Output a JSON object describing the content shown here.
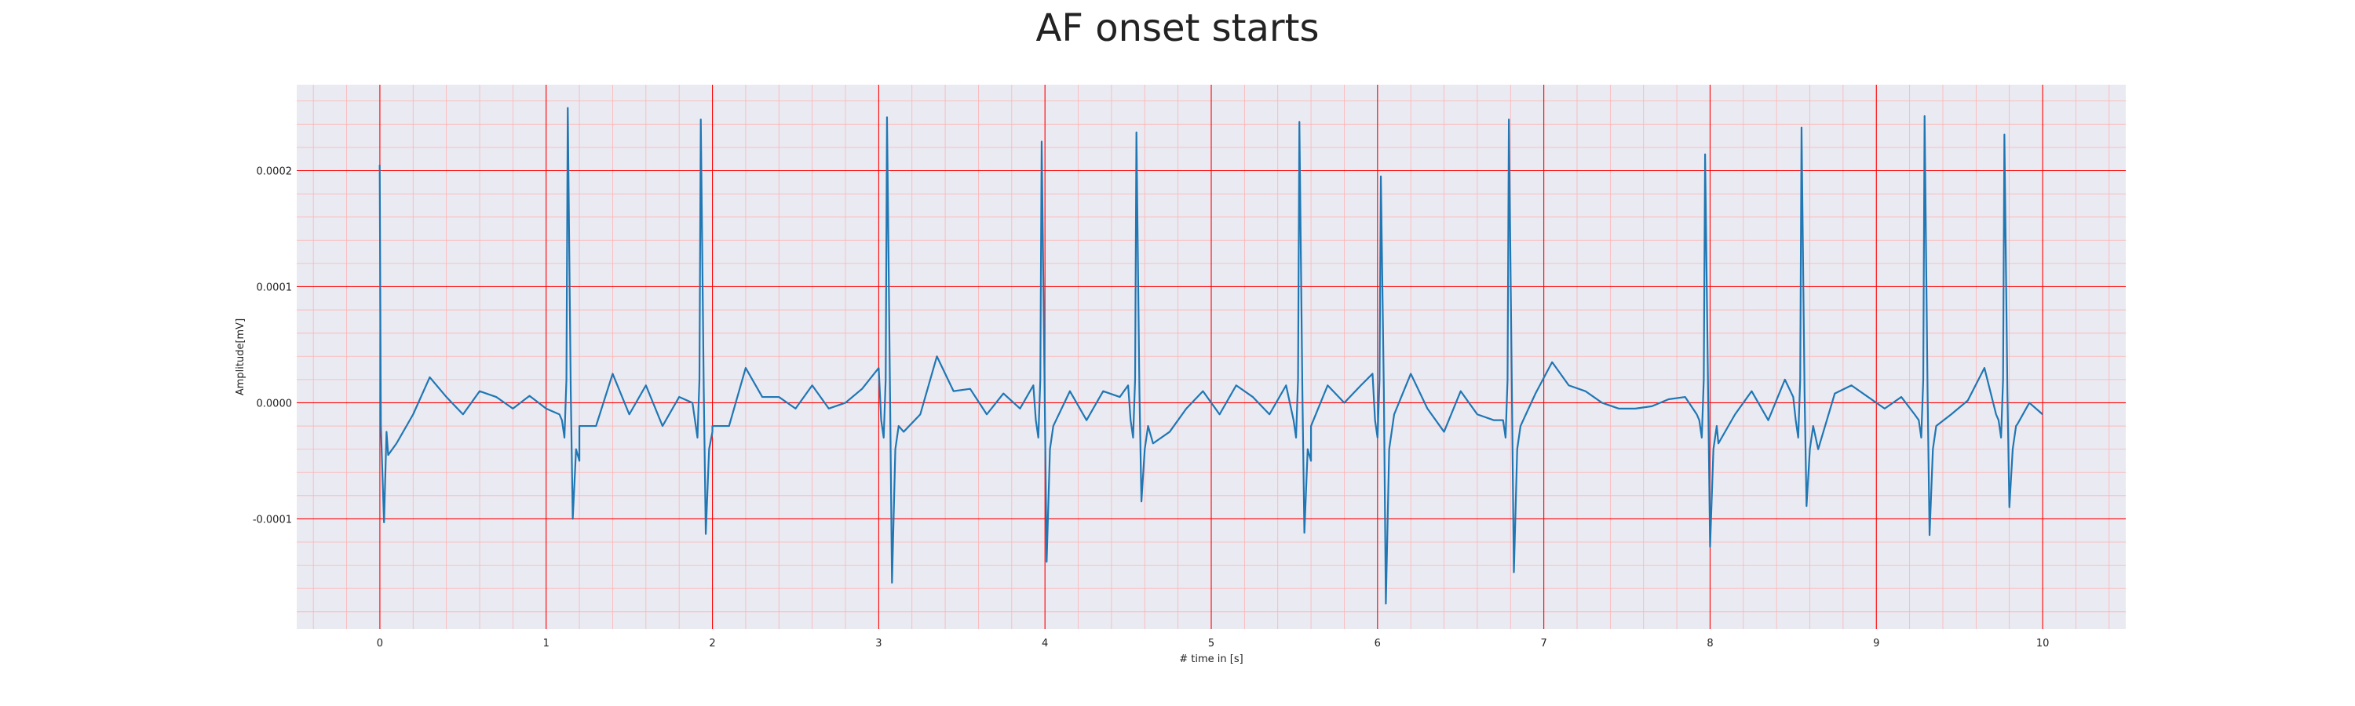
{
  "colors": {
    "background": "#eaeaf2",
    "major_grid": "#ff0000",
    "minor_grid": "#ffb3b3",
    "line": "#1f77b4"
  },
  "chart_data": {
    "type": "line",
    "title": "AF onset starts",
    "xlabel": "# time in [s]",
    "ylabel": "Amplitude[mV]",
    "xlim": [
      -0.5,
      10.5
    ],
    "ylim": [
      -0.000195,
      0.000274
    ],
    "x_ticks": [
      0,
      1,
      2,
      3,
      4,
      5,
      6,
      7,
      8,
      9,
      10
    ],
    "x_tick_labels": [
      "0",
      "1",
      "2",
      "3",
      "4",
      "5",
      "6",
      "7",
      "8",
      "9",
      "10"
    ],
    "y_ticks": [
      0.0002,
      0.0001,
      0.0,
      -0.0001
    ],
    "y_tick_labels": [
      "0.0002",
      "0.0001",
      "0.0000",
      "-0.0001"
    ],
    "grid": true,
    "minor_grid": true,
    "legend": "none",
    "series": [
      {
        "color": "#1f77b4",
        "r_peaks": [
          {
            "t": 0.0,
            "peak": 0.000205,
            "trough": -0.000103
          },
          {
            "t": 1.13,
            "peak": 0.000254,
            "trough": -0.0001
          },
          {
            "t": 1.93,
            "peak": 0.000244,
            "trough": -0.000113
          },
          {
            "t": 3.05,
            "peak": 0.000246,
            "trough": -0.000155
          },
          {
            "t": 3.98,
            "peak": 0.000225,
            "trough": -0.000137
          },
          {
            "t": 4.55,
            "peak": 0.000233,
            "trough": -8.5e-05
          },
          {
            "t": 5.53,
            "peak": 0.000242,
            "trough": -0.000112
          },
          {
            "t": 6.02,
            "peak": 0.000195,
            "trough": -0.000173
          },
          {
            "t": 6.79,
            "peak": 0.000244,
            "trough": -0.000146
          },
          {
            "t": 7.97,
            "peak": 0.000214,
            "trough": -0.000124
          },
          {
            "t": 8.55,
            "peak": 0.000237,
            "trough": -8.9e-05
          },
          {
            "t": 9.29,
            "peak": 0.000247,
            "trough": -0.000114
          },
          {
            "t": 9.77,
            "peak": 0.000231,
            "trough": -9e-05
          }
        ],
        "baseline_points": [
          [
            0.05,
            -4.5e-05
          ],
          [
            0.1,
            -3.5e-05
          ],
          [
            0.2,
            -1e-05
          ],
          [
            0.3,
            2.2e-05
          ],
          [
            0.4,
            5e-06
          ],
          [
            0.5,
            -1e-05
          ],
          [
            0.6,
            1e-05
          ],
          [
            0.7,
            5e-06
          ],
          [
            0.8,
            -5e-06
          ],
          [
            0.9,
            6e-06
          ],
          [
            1.0,
            -5e-06
          ],
          [
            1.08,
            -1e-05
          ],
          [
            1.2,
            -5e-05
          ],
          [
            1.3,
            -2e-05
          ],
          [
            1.4,
            2.5e-05
          ],
          [
            1.5,
            -1e-05
          ],
          [
            1.6,
            1.5e-05
          ],
          [
            1.7,
            -2e-05
          ],
          [
            1.8,
            5e-06
          ],
          [
            1.88,
            0.0
          ],
          [
            2.0,
            -2.5e-05
          ],
          [
            2.1,
            -2e-05
          ],
          [
            2.2,
            3e-05
          ],
          [
            2.3,
            5e-06
          ],
          [
            2.4,
            5e-06
          ],
          [
            2.5,
            -5e-06
          ],
          [
            2.6,
            1.5e-05
          ],
          [
            2.7,
            -5e-06
          ],
          [
            2.8,
            0.0
          ],
          [
            2.9,
            1.2e-05
          ],
          [
            3.0,
            3e-05
          ],
          [
            3.15,
            -2.5e-05
          ],
          [
            3.25,
            -1e-05
          ],
          [
            3.35,
            4e-05
          ],
          [
            3.45,
            1e-05
          ],
          [
            3.55,
            1.2e-05
          ],
          [
            3.65,
            -1e-05
          ],
          [
            3.75,
            8e-06
          ],
          [
            3.85,
            -5e-06
          ],
          [
            3.93,
            1.5e-05
          ],
          [
            4.05,
            -2e-05
          ],
          [
            4.15,
            1e-05
          ],
          [
            4.25,
            -1.5e-05
          ],
          [
            4.35,
            1e-05
          ],
          [
            4.45,
            5e-06
          ],
          [
            4.5,
            1.5e-05
          ],
          [
            4.65,
            -3.5e-05
          ],
          [
            4.75,
            -2.5e-05
          ],
          [
            4.85,
            -5e-06
          ],
          [
            4.95,
            1e-05
          ],
          [
            5.05,
            -1e-05
          ],
          [
            5.15,
            1.5e-05
          ],
          [
            5.25,
            5e-06
          ],
          [
            5.35,
            -1e-05
          ],
          [
            5.45,
            1.5e-05
          ],
          [
            5.6,
            -5e-05
          ],
          [
            5.7,
            1.5e-05
          ],
          [
            5.8,
            0.0
          ],
          [
            5.9,
            1.5e-05
          ],
          [
            5.97,
            2.5e-05
          ],
          [
            6.1,
            -1e-05
          ],
          [
            6.2,
            2.5e-05
          ],
          [
            6.3,
            -5e-06
          ],
          [
            6.4,
            -2.5e-05
          ],
          [
            6.5,
            1e-05
          ],
          [
            6.6,
            -1e-05
          ],
          [
            6.7,
            -1.5e-05
          ],
          [
            6.85,
            -3e-05
          ],
          [
            6.95,
            8e-06
          ],
          [
            7.05,
            3.5e-05
          ],
          [
            7.15,
            1.5e-05
          ],
          [
            7.25,
            1e-05
          ],
          [
            7.35,
            0.0
          ],
          [
            7.45,
            -5e-06
          ],
          [
            7.55,
            -5e-06
          ],
          [
            7.65,
            -3e-06
          ],
          [
            7.75,
            3e-06
          ],
          [
            7.85,
            5e-06
          ],
          [
            7.92,
            -1e-05
          ],
          [
            8.05,
            -3.5e-05
          ],
          [
            8.15,
            -1e-05
          ],
          [
            8.25,
            1e-05
          ],
          [
            8.35,
            -1.5e-05
          ],
          [
            8.45,
            2e-05
          ],
          [
            8.5,
            5e-06
          ],
          [
            8.65,
            -4e-05
          ],
          [
            8.75,
            8e-06
          ],
          [
            8.85,
            1.5e-05
          ],
          [
            8.95,
            5e-06
          ],
          [
            9.05,
            -5e-06
          ],
          [
            9.15,
            5e-06
          ],
          [
            9.23,
            -1e-05
          ],
          [
            9.35,
            -3e-05
          ],
          [
            9.45,
            -1e-05
          ],
          [
            9.55,
            2e-06
          ],
          [
            9.65,
            3e-05
          ],
          [
            9.72,
            -1e-05
          ],
          [
            9.85,
            -1.8e-05
          ],
          [
            9.92,
            0.0
          ],
          [
            10.0,
            -1e-05
          ]
        ]
      }
    ]
  }
}
